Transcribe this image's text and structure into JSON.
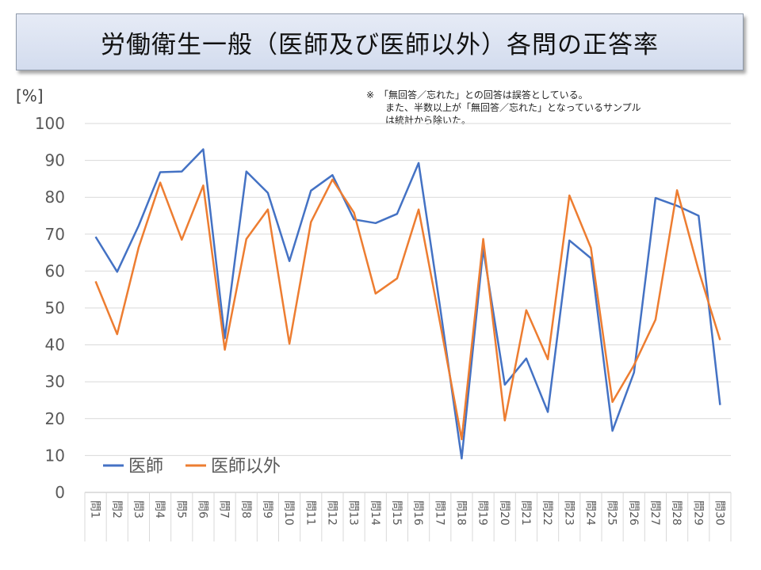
{
  "title": "労働衛生一般（医師及び医師以外）各問の正答率",
  "note_lines": [
    "※　「無回答／忘れた」との回答は誤答としている。",
    "　　また、半数以上が「無回答／忘れた」となっているサンプル",
    "　　は統計から除いた。"
  ],
  "chart_data": {
    "type": "line",
    "title": "労働衛生一般（医師及び医師以外）各問の正答率",
    "ylabel": "[%]",
    "xlabel": "",
    "ylim": [
      0,
      100
    ],
    "yticks": [
      0,
      10,
      20,
      30,
      40,
      50,
      60,
      70,
      80,
      90,
      100
    ],
    "grid": true,
    "legend_position": "bottom-left",
    "categories": [
      "問1",
      "問2",
      "問3",
      "問4",
      "問5",
      "問6",
      "問7",
      "問8",
      "問9",
      "問10",
      "問11",
      "問12",
      "問13",
      "問14",
      "問15",
      "問16",
      "問17",
      "問18",
      "問19",
      "問20",
      "問21",
      "問22",
      "問23",
      "問24",
      "問25",
      "問26",
      "問27",
      "問28",
      "問29",
      "問30"
    ],
    "series": [
      {
        "name": "医師",
        "color": "#4472c4",
        "values": [
          69.3,
          59.8,
          72.3,
          86.8,
          87.0,
          93.0,
          41.8,
          87.0,
          81.2,
          62.7,
          81.8,
          86.0,
          74.0,
          73.0,
          75.5,
          89.3,
          50.0,
          9.2,
          66.0,
          29.2,
          36.3,
          21.8,
          68.3,
          63.5,
          16.7,
          32.5,
          79.8,
          77.7,
          75.0,
          23.7
        ]
      },
      {
        "name": "医師以外",
        "color": "#ed7d31",
        "values": [
          57.2,
          42.9,
          66.4,
          84.0,
          68.5,
          83.2,
          38.7,
          68.7,
          76.7,
          40.3,
          73.3,
          84.8,
          75.8,
          53.9,
          58.0,
          76.7,
          45.8,
          14.4,
          68.7,
          19.5,
          49.4,
          36.1,
          80.5,
          66.3,
          24.5,
          34.5,
          46.8,
          81.9,
          60.2,
          41.3
        ]
      }
    ]
  }
}
